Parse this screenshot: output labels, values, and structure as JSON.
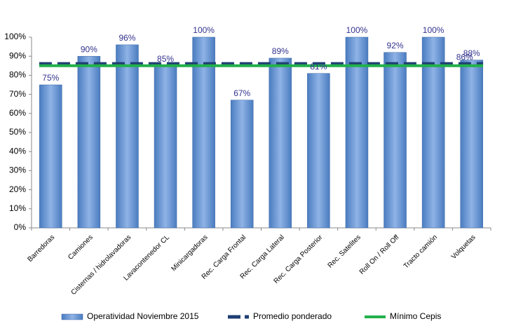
{
  "chart_data": {
    "type": "bar",
    "categories": [
      "Barredoras",
      "Camiones",
      "Cisternas / hidrolavadoras",
      "Lavacontenedor CL",
      "Minicargadoras",
      "Rec. Carga Frontal",
      "Rec. Carga Lateral",
      "Rec. Carga Posterior",
      "Rec. Satelites",
      "Roll On / Roll Off",
      "Tracto camión",
      "Volquetas"
    ],
    "series": [
      {
        "name": "Operatividad Noviembre 2015",
        "type": "bar",
        "color": "#5b8fd0",
        "values": [
          75,
          90,
          96,
          85,
          100,
          67,
          89,
          81,
          100,
          92,
          100,
          88
        ],
        "value_labels": [
          "75%",
          "90%",
          "96%",
          "85%",
          "100%",
          "67%",
          "89%",
          "81%",
          "100%",
          "92%",
          "100%",
          "88%"
        ]
      },
      {
        "name": "Promedio ponderado",
        "type": "dashed-line",
        "color": "#1f3f73",
        "values": [
          86,
          86,
          86,
          86,
          86,
          86,
          86,
          86,
          86,
          86,
          86,
          86
        ],
        "value_labels": [
          null,
          null,
          null,
          null,
          null,
          null,
          null,
          null,
          null,
          null,
          null,
          "86%"
        ]
      },
      {
        "name": "Mínimo Cepis",
        "type": "line",
        "color": "#22b04b",
        "values": [
          85,
          85,
          85,
          85,
          85,
          85,
          85,
          85,
          85,
          85,
          85,
          85
        ]
      }
    ],
    "ylim": [
      0,
      100
    ],
    "yticks": [
      {
        "value": 0,
        "label": "0%"
      },
      {
        "value": 10,
        "label": "10%"
      },
      {
        "value": 20,
        "label": "20%"
      },
      {
        "value": 30,
        "label": "30%"
      },
      {
        "value": 40,
        "label": "40%"
      },
      {
        "value": 50,
        "label": "50%"
      },
      {
        "value": 60,
        "label": "60%"
      },
      {
        "value": 70,
        "label": "70%"
      },
      {
        "value": 80,
        "label": "80%"
      },
      {
        "value": 90,
        "label": "90%"
      },
      {
        "value": 100,
        "label": "100%"
      }
    ],
    "grid": false,
    "legend": "bottom"
  }
}
